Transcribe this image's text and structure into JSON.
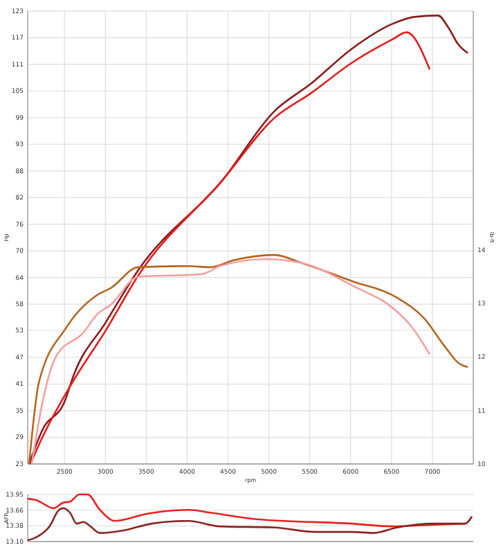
{
  "chart_data": [
    {
      "type": "line",
      "xlabel": "rpm",
      "ylabel": "Hp",
      "y2label": "lb-ft",
      "xlim": [
        2050,
        7500
      ],
      "xticks": [
        2500,
        3000,
        3500,
        4000,
        4500,
        5000,
        5500,
        6000,
        6500,
        7000
      ],
      "ylim": [
        23,
        122.875
      ],
      "yticks": [
        {
          "value": 23,
          "label": "23"
        },
        {
          "value": 28.875,
          "label": "29"
        },
        {
          "value": 34.75,
          "label": "35"
        },
        {
          "value": 40.625,
          "label": "41"
        },
        {
          "value": 46.5,
          "label": "47"
        },
        {
          "value": 52.5,
          "label": "53"
        },
        {
          "value": 58.25,
          "label": "58"
        },
        {
          "value": 64.125,
          "label": "64"
        },
        {
          "value": 70,
          "label": "70"
        },
        {
          "value": 75.875,
          "label": "76"
        },
        {
          "value": 81.75,
          "label": "82"
        },
        {
          "value": 87.625,
          "label": "88"
        },
        {
          "value": 93.5,
          "label": "93"
        },
        {
          "value": 99.375,
          "label": "99"
        },
        {
          "value": 105.25,
          "label": "105"
        },
        {
          "value": 111.125,
          "label": "111"
        },
        {
          "value": 117,
          "label": "117"
        },
        {
          "value": 122.875,
          "label": "123"
        }
      ],
      "y2lim": [
        10,
        18.47
      ],
      "y2ticks": [
        10,
        11,
        12,
        13,
        14
      ],
      "grid": true,
      "series": [
        {
          "color": "#8b1a1a",
          "x": [
            2067,
            2233,
            2500,
            2617,
            3000,
            3400,
            4433,
            5067,
            5517,
            6017,
            6517,
            6783,
            7067,
            7200,
            7317,
            7433
          ],
          "values": [
            23,
            30.6,
            36.7,
            42.8,
            54.1,
            65.7,
            85.6,
            100.8,
            106.9,
            114.6,
            120.1,
            121.6,
            121.9,
            119.1,
            115.5,
            113.6
          ]
        },
        {
          "color": "#e31b1b",
          "x": [
            2083,
            2233,
            2617,
            3000,
            3400,
            4433,
            5067,
            5517,
            6017,
            6517,
            6683,
            6967
          ],
          "values": [
            23,
            29,
            41.6,
            52.3,
            64.5,
            85.6,
            99.3,
            104.8,
            111.5,
            116.7,
            118.2,
            110
          ]
        },
        {
          "color": "#b5651d",
          "axis": "y2",
          "x": [
            2067,
            2150,
            2183,
            2517,
            2900,
            3067,
            3400,
            4017,
            4283,
            4567,
            5067,
            5400,
            6017,
            6567,
            6900,
            7150,
            7317,
            7433
          ],
          "values": [
            10,
            11.17,
            11.5,
            12.54,
            13.16,
            13.29,
            13.68,
            13.7,
            13.68,
            13.81,
            13.91,
            13.76,
            13.42,
            13.11,
            12.72,
            12.2,
            11.89,
            11.81
          ]
        },
        {
          "color": "#f4a0a0",
          "axis": "y2",
          "x": [
            2100,
            2233,
            2400,
            2733,
            2900,
            3067,
            3400,
            4183,
            4400,
            4950,
            5400,
            6017,
            6567,
            6733,
            6967
          ],
          "values": [
            10,
            11.17,
            12.02,
            12.46,
            12.8,
            12.98,
            13.5,
            13.55,
            13.7,
            13.83,
            13.76,
            13.34,
            12.85,
            12.59,
            12.05
          ]
        }
      ]
    },
    {
      "type": "line",
      "ylabel": "AFR",
      "xlim": [
        2050,
        7500
      ],
      "ylim": [
        13.095,
        13.95
      ],
      "yticks": [
        {
          "value": 13.095,
          "label": "13.10"
        },
        {
          "value": 13.38,
          "label": "13.38"
        },
        {
          "value": 13.665,
          "label": "13.66"
        },
        {
          "value": 13.95,
          "label": "13.95"
        }
      ],
      "grid": true,
      "tick_labels": "y",
      "series": [
        {
          "color": "#e8201f",
          "x": [
            2050,
            2150,
            2367,
            2483,
            2567,
            2683,
            2783,
            2933,
            3117,
            3517,
            4017,
            4283,
            4850,
            6017,
            6517,
            7017,
            7400
          ],
          "values": [
            13.87,
            13.85,
            13.7,
            13.8,
            13.82,
            13.95,
            13.95,
            13.67,
            13.47,
            13.6,
            13.67,
            13.62,
            13.5,
            13.42,
            13.37,
            13.4,
            13.42
          ]
        },
        {
          "color": "#8b2323",
          "x": [
            2050,
            2150,
            2317,
            2433,
            2483,
            2567,
            2650,
            2733,
            2817,
            2933,
            3233,
            3567,
            4017,
            4400,
            5067,
            5567,
            6017,
            6283,
            6567,
            7017,
            7400,
            7483
          ],
          "values": [
            13.12,
            13.17,
            13.37,
            13.67,
            13.7,
            13.62,
            13.42,
            13.45,
            13.37,
            13.25,
            13.3,
            13.42,
            13.47,
            13.37,
            13.35,
            13.27,
            13.27,
            13.25,
            13.35,
            13.42,
            13.42,
            13.55
          ]
        }
      ]
    }
  ]
}
